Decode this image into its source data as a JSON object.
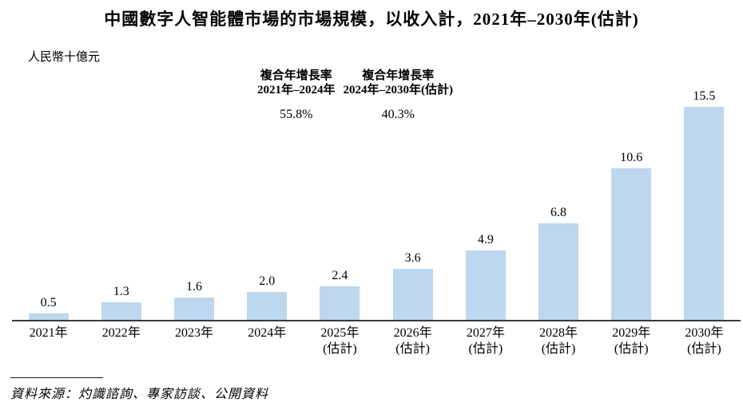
{
  "title": "中國數字人智能體市場的市場規模，以收入計，2021年–2030年(估計)",
  "unit_label": "人民幣十億元",
  "cagr": {
    "block1": {
      "line1": "複合年增長率",
      "line2": "2021年–2024年",
      "value": "55.8%"
    },
    "block2": {
      "line1": "複合年增長率",
      "line2": "2024年–2030年(估計)",
      "value": "40.3%"
    }
  },
  "source": "資料來源：灼識諮詢、專家訪談、公開資料",
  "colors": {
    "bar": "#BDD7EE",
    "axis": "#3a3a3a",
    "text": "#000000"
  },
  "x_tick_lines": [
    [
      "2021年"
    ],
    [
      "2022年"
    ],
    [
      "2023年"
    ],
    [
      "2024年"
    ],
    [
      "2025年",
      "(估計)"
    ],
    [
      "2026年",
      "(估計)"
    ],
    [
      "2027年",
      "(估計)"
    ],
    [
      "2028年",
      "(估計)"
    ],
    [
      "2029年",
      "(估計)"
    ],
    [
      "2030年",
      "(估計)"
    ]
  ],
  "chart_data": {
    "type": "bar",
    "title": "中國數字人智能體市場的市場規模，以收入計，2021年–2030年(估計)",
    "xlabel": "",
    "ylabel": "人民幣十億元",
    "categories": [
      "2021年",
      "2022年",
      "2023年",
      "2024年",
      "2025年(估計)",
      "2026年(估計)",
      "2027年(估計)",
      "2028年(估計)",
      "2029年(估計)",
      "2030年(估計)"
    ],
    "values": [
      0.5,
      1.3,
      1.6,
      2.0,
      2.4,
      3.6,
      4.9,
      6.8,
      10.6,
      15.5
    ],
    "ylim": [
      0,
      16
    ],
    "grid": false,
    "legend": "none",
    "bar_color": "#BDD7EE",
    "annotations": [
      {
        "label": "複合年增長率 2021年–2024年",
        "value": "55.8%"
      },
      {
        "label": "複合年增長率 2024年–2030年(估計)",
        "value": "40.3%"
      }
    ],
    "source": "資料來源：灼識諮詢、專家訪談、公開資料"
  }
}
